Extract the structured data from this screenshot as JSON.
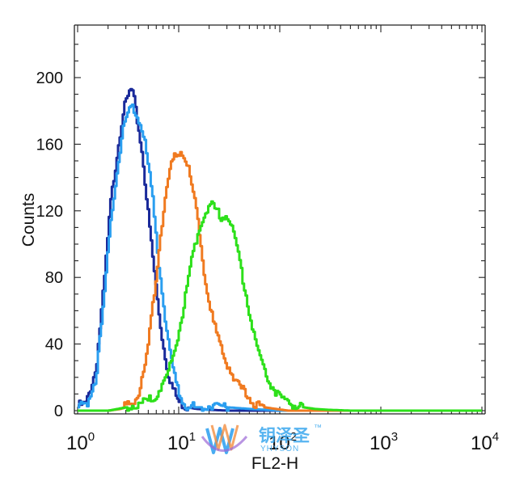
{
  "chart_data": {
    "type": "line",
    "xlabel": "FL2-H",
    "ylabel": "Counts",
    "x_scale": "log",
    "xlim": [
      1,
      10000
    ],
    "ylim": [
      0,
      230
    ],
    "grid": false,
    "x_ticks": [
      {
        "base": "10",
        "exp": "0",
        "value": 1
      },
      {
        "base": "10",
        "exp": "1",
        "value": 10
      },
      {
        "base": "10",
        "exp": "2",
        "value": 100
      },
      {
        "base": "10",
        "exp": "3",
        "value": 1000
      },
      {
        "base": "10",
        "exp": "4",
        "value": 10000
      }
    ],
    "y_ticks": [
      "0",
      "40",
      "80",
      "120",
      "160",
      "200"
    ],
    "series": [
      {
        "color": "#1a2a9a",
        "x": [
          1,
          1.2,
          1.5,
          1.8,
          2.1,
          2.5,
          2.8,
          3.1,
          3.3,
          3.5,
          3.7,
          4.0,
          4.4,
          4.8,
          5.3,
          5.8,
          6.4,
          7.0,
          7.8,
          8.8,
          10,
          12,
          15,
          20,
          30,
          50,
          100,
          1000,
          10000
        ],
        "y": [
          3,
          4,
          25,
          75,
          125,
          160,
          180,
          188,
          193,
          190,
          180,
          168,
          150,
          125,
          100,
          78,
          55,
          38,
          22,
          12,
          5,
          2,
          1,
          0.5,
          0,
          0,
          0,
          0,
          0
        ]
      },
      {
        "color": "#2a9ef0",
        "x": [
          1,
          1.2,
          1.5,
          1.8,
          2.1,
          2.5,
          2.8,
          3.1,
          3.4,
          3.8,
          4.2,
          4.6,
          5.0,
          5.5,
          6.0,
          6.6,
          7.2,
          8.0,
          9.0,
          10,
          11,
          12,
          14,
          17,
          22,
          30,
          50,
          100,
          1000,
          10000
        ],
        "y": [
          2,
          3,
          20,
          65,
          115,
          150,
          170,
          178,
          183,
          178,
          172,
          160,
          145,
          125,
          100,
          78,
          58,
          38,
          20,
          10,
          6,
          3,
          2,
          2,
          4,
          2,
          1,
          0,
          0,
          0
        ]
      },
      {
        "color": "#f07a20",
        "x": [
          1,
          2,
          2.6,
          3.2,
          3.8,
          4.4,
          5.0,
          5.7,
          6.5,
          7.4,
          8.4,
          9.5,
          10.5,
          11.5,
          12.5,
          14,
          16,
          18,
          21,
          25,
          30,
          36,
          45,
          55,
          70,
          90,
          120,
          200,
          1000,
          10000
        ],
        "y": [
          0,
          0,
          1,
          3,
          8,
          20,
          42,
          72,
          105,
          130,
          148,
          155,
          156,
          152,
          143,
          128,
          105,
          80,
          57,
          40,
          28,
          18,
          10,
          5,
          2,
          1,
          0,
          0,
          0,
          0
        ]
      },
      {
        "color": "#2de01a",
        "x": [
          1,
          2,
          3,
          4,
          5,
          6,
          7,
          8,
          9.5,
          11,
          13,
          15,
          17,
          19,
          21,
          23,
          26,
          30,
          34,
          38,
          43,
          50,
          58,
          68,
          80,
          95,
          115,
          140,
          170,
          220,
          300,
          500,
          1000,
          10000
        ],
        "y": [
          0,
          0,
          2,
          4,
          6,
          10,
          16,
          25,
          42,
          62,
          88,
          105,
          115,
          122,
          124,
          120,
          117,
          117,
          108,
          95,
          78,
          58,
          40,
          26,
          16,
          9,
          5,
          3,
          2,
          1,
          0.5,
          0,
          0,
          0
        ]
      }
    ]
  },
  "watermark": {
    "brand_cn": "钥泽圣",
    "trademark": "™",
    "brand_en": "YHYSON"
  }
}
